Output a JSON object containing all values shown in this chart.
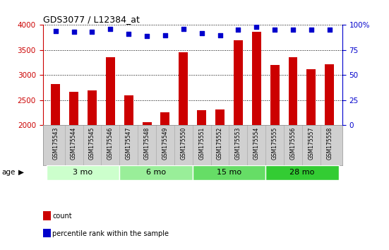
{
  "title": "GDS3077 / L12384_at",
  "samples": [
    "GSM175543",
    "GSM175544",
    "GSM175545",
    "GSM175546",
    "GSM175547",
    "GSM175548",
    "GSM175549",
    "GSM175550",
    "GSM175551",
    "GSM175552",
    "GSM175553",
    "GSM175554",
    "GSM175555",
    "GSM175556",
    "GSM175557",
    "GSM175558"
  ],
  "counts": [
    2820,
    2660,
    2695,
    3360,
    2590,
    2050,
    2250,
    3450,
    2300,
    2310,
    3700,
    3870,
    3200,
    3360,
    3120,
    3220
  ],
  "percentiles": [
    94,
    93,
    93,
    96,
    91,
    89,
    90,
    96,
    92,
    90,
    95,
    98,
    95,
    95,
    95,
    95
  ],
  "ylim_left": [
    2000,
    4000
  ],
  "ylim_right": [
    0,
    100
  ],
  "yticks_left": [
    2000,
    2500,
    3000,
    3500,
    4000
  ],
  "yticks_right": [
    0,
    25,
    50,
    75,
    100
  ],
  "bar_color": "#cc0000",
  "dot_color": "#0000cc",
  "groups": [
    {
      "label": "3 mo",
      "start": 0,
      "end": 4,
      "color": "#ccffcc"
    },
    {
      "label": "6 mo",
      "start": 4,
      "end": 8,
      "color": "#99ee99"
    },
    {
      "label": "15 mo",
      "start": 8,
      "end": 12,
      "color": "#66dd66"
    },
    {
      "label": "28 mo",
      "start": 12,
      "end": 16,
      "color": "#33cc33"
    }
  ],
  "age_label": "age",
  "legend_count": "count",
  "legend_percentile": "percentile rank within the sample",
  "left_axis_color": "#cc0000",
  "right_axis_color": "#0000cc",
  "bg_color": "#ffffff",
  "plot_bg": "#ffffff",
  "label_bg": "#d0d0d0",
  "grid_color": "#000000"
}
